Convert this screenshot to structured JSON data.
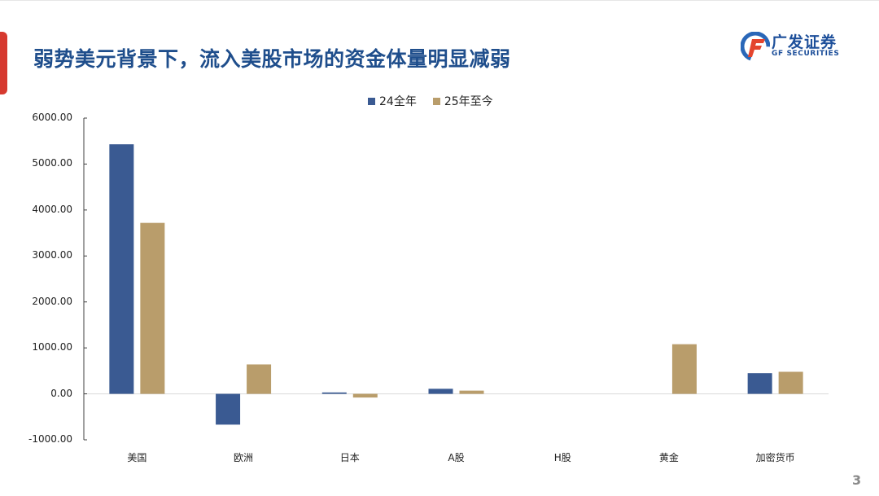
{
  "slide": {
    "title": "弱势美元背景下，流入美股市场的资金体量明显减弱",
    "page_number": "3",
    "logo": {
      "cn": "广发证券",
      "en": "GF SECURITIES",
      "icon": "gf-logo-icon"
    },
    "colors": {
      "accent_red": "#d6392f",
      "title_blue": "#1f4e8c",
      "series_24": "#3a5a92",
      "series_25": "#b99d6b"
    }
  },
  "legend": [
    {
      "label": "24全年",
      "color": "#3a5a92"
    },
    {
      "label": "25年至今",
      "color": "#b99d6b"
    }
  ],
  "y_ticks": [
    "6000.00",
    "5000.00",
    "4000.00",
    "3000.00",
    "2000.00",
    "1000.00",
    "0.00",
    "-1000.00"
  ],
  "chart_data": {
    "type": "bar",
    "title": "",
    "xlabel": "",
    "ylabel": "",
    "ylim": [
      -1000,
      6000
    ],
    "grid": false,
    "legend_position": "top",
    "categories": [
      "美国",
      "欧洲",
      "日本",
      "A股",
      "H股",
      "黄金",
      "加密货币"
    ],
    "series": [
      {
        "name": "24全年",
        "values": [
          5430,
          -670,
          30,
          110,
          0,
          0,
          450
        ]
      },
      {
        "name": "25年至今",
        "values": [
          3720,
          640,
          -80,
          70,
          0,
          1080,
          480
        ]
      }
    ]
  }
}
